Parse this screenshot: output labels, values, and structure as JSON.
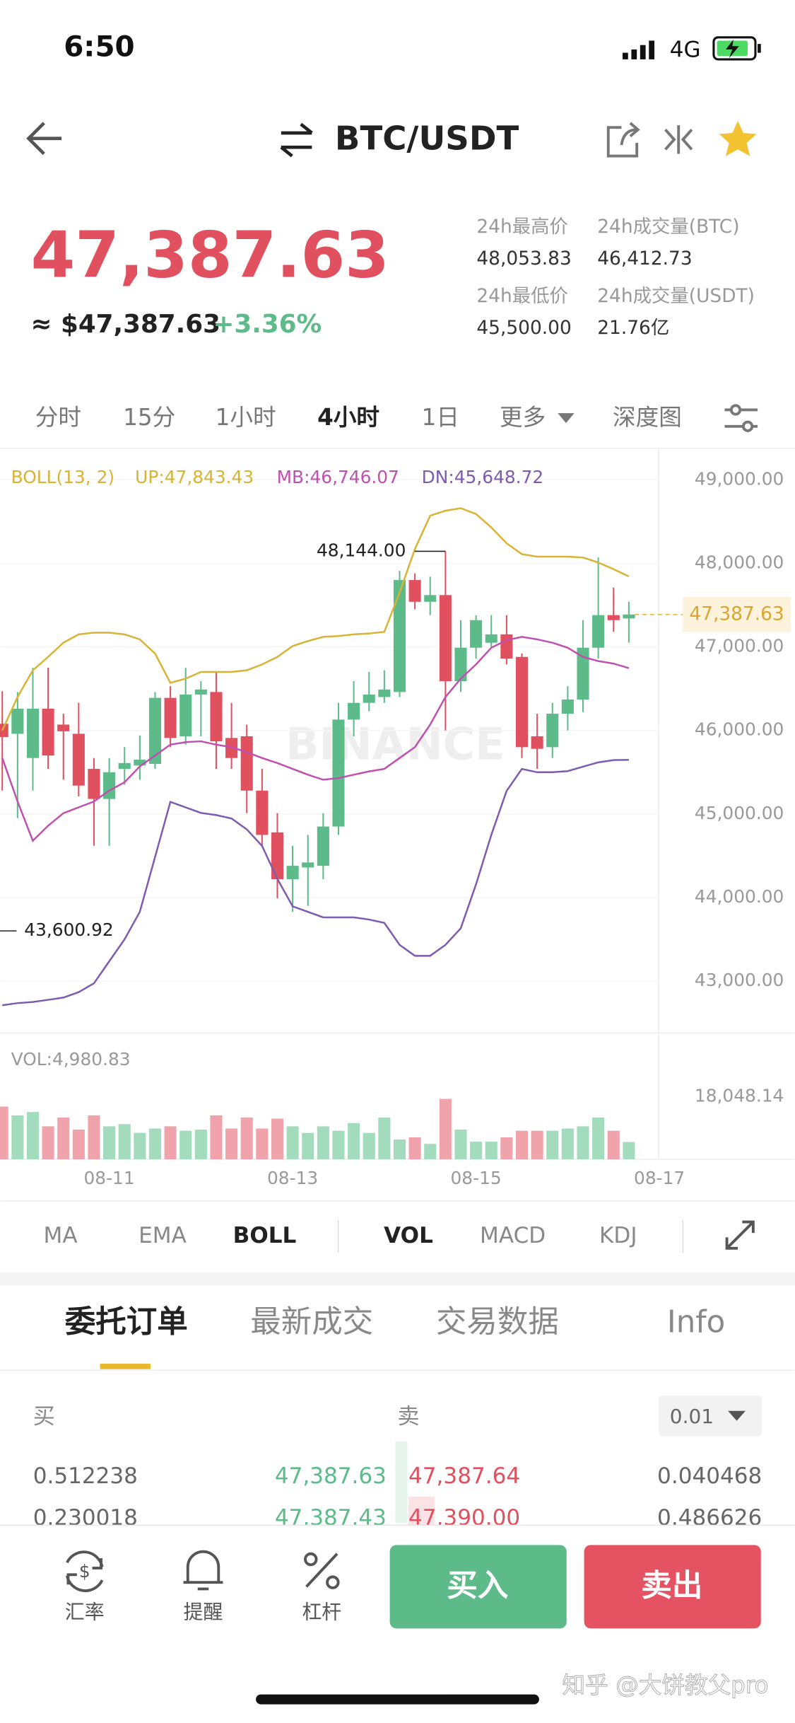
{
  "status_bar": {
    "time": "6:50",
    "network": "4G"
  },
  "header": {
    "title": "BTC/USDT"
  },
  "ticker": {
    "price": "47,387.63",
    "usd": "≈ $47,387.63",
    "change": "+3.36%",
    "stats": [
      {
        "label": "24h最高价",
        "value": "48,053.83"
      },
      {
        "label": "24h成交量(BTC)",
        "value": "46,412.73"
      },
      {
        "label": "24h最低价",
        "value": "45,500.00"
      },
      {
        "label": "24h成交量(USDT)",
        "value": "21.76亿"
      }
    ]
  },
  "intervals": [
    "分时",
    "15分",
    "1小时",
    "4小时",
    "1日",
    "更多",
    "深度图"
  ],
  "chart_watermark": "BINANCE",
  "chart_data": {
    "type": "candlestick",
    "indicator_label": "BOLL(13, 2)",
    "up_color": "#5dbb8a",
    "down_color": "#e0505f",
    "categories": [
      null,
      null,
      null,
      null,
      null,
      null,
      null,
      "08-11",
      null,
      null,
      null,
      null,
      null,
      null,
      null,
      null,
      null,
      null,
      null,
      "08-13",
      null,
      null,
      null,
      null,
      null,
      null,
      null,
      null,
      null,
      null,
      null,
      "08-15",
      null,
      null,
      null,
      null,
      null,
      null,
      null,
      null,
      null,
      null,
      null,
      "08-17"
    ],
    "open": [
      46080,
      45960,
      45670,
      46260,
      46070,
      45960,
      45540,
      45180,
      45540,
      45580,
      45600,
      46390,
      45930,
      46430,
      46460,
      45910,
      45930,
      45280,
      44780,
      44220,
      44360,
      44380,
      44850,
      46130,
      46330,
      46400,
      46460,
      47800,
      47540,
      47620,
      46590,
      46990,
      47050,
      47150,
      46880,
      45930,
      45800,
      46200,
      46370,
      46990,
      47380,
      47340,
      null,
      null
    ],
    "high": [
      46470,
      46460,
      46750,
      46750,
      46200,
      46330,
      45670,
      45670,
      45800,
      45940,
      46460,
      46530,
      46750,
      46590,
      46700,
      46330,
      46070,
      45540,
      45010,
      44620,
      44750,
      45010,
      46330,
      46590,
      46700,
      46720,
      47910,
      47880,
      47840,
      48144,
      47320,
      47380,
      47380,
      47380,
      46920,
      46200,
      46330,
      46530,
      47320,
      48070,
      47710,
      47540,
      null,
      null
    ],
    "low": [
      45280,
      44950,
      45280,
      45540,
      45410,
      45210,
      44620,
      44620,
      45350,
      45410,
      45540,
      45800,
      45830,
      45930,
      45540,
      45540,
      45010,
      44620,
      43990,
      43830,
      43900,
      44220,
      44750,
      45930,
      46230,
      46330,
      46400,
      47450,
      47380,
      46000,
      46460,
      46860,
      46990,
      46790,
      45670,
      45540,
      45670,
      46000,
      46220,
      46860,
      47180,
      47050,
      null,
      null
    ],
    "close": [
      45920,
      46260,
      46260,
      45700,
      45990,
      45340,
      45180,
      45500,
      45610,
      45650,
      46390,
      45910,
      46430,
      46490,
      45870,
      45670,
      45280,
      44750,
      44220,
      44380,
      44420,
      44850,
      46130,
      46330,
      46430,
      46490,
      47800,
      47540,
      47620,
      46590,
      46990,
      47320,
      47150,
      46860,
      45800,
      45780,
      46200,
      46370,
      46990,
      47380,
      47320,
      47387.63,
      null,
      null
    ],
    "bands": [
      {
        "label": "UP:47,843.43",
        "color": "#d8b334",
        "values": [
          46000,
          46400,
          46720,
          46880,
          47050,
          47150,
          47170,
          47170,
          47150,
          47090,
          46920,
          46570,
          46620,
          46700,
          46700,
          46700,
          46720,
          46790,
          46880,
          47010,
          47070,
          47120,
          47130,
          47150,
          47160,
          47180,
          47650,
          48170,
          48570,
          48630,
          48660,
          48590,
          48430,
          48240,
          48110,
          48080,
          48080,
          48080,
          48070,
          48010,
          47930,
          47843.43,
          null,
          null
        ]
      },
      {
        "label": "MB:46,746.07",
        "color": "#c050b0",
        "values": [
          45670,
          45150,
          44680,
          44860,
          45010,
          45080,
          45150,
          45280,
          45380,
          45570,
          45700,
          45830,
          45860,
          45870,
          45830,
          45800,
          45740,
          45670,
          45610,
          45540,
          45470,
          45410,
          45430,
          45470,
          45510,
          45540,
          45670,
          45800,
          46070,
          46400,
          46620,
          46790,
          46990,
          47080,
          47120,
          47090,
          47050,
          46990,
          46880,
          46830,
          46800,
          46746.07,
          null,
          null
        ]
      },
      {
        "label": "DN:45,648.72",
        "color": "#7d5bb0",
        "values": [
          42711,
          42737,
          42750,
          42776,
          42803,
          42868,
          42974,
          43237,
          43500,
          43829,
          44487,
          45145,
          45079,
          45013,
          44987,
          44947,
          44816,
          44618,
          44224,
          43895,
          43829,
          43763,
          43763,
          43763,
          43737,
          43697,
          43434,
          43303,
          43303,
          43434,
          43632,
          44158,
          44750,
          45276,
          45539,
          45500,
          45500,
          45513,
          45566,
          45618,
          45645,
          45648.72,
          null,
          null
        ]
      }
    ],
    "ylim": [
      42380,
      49350
    ],
    "yticks": [
      {
        "value": 49000,
        "label": "49,000.00"
      },
      {
        "value": 48000,
        "label": "48,000.00"
      },
      {
        "value": 47000,
        "label": "47,000.00"
      },
      {
        "value": 46000,
        "label": "46,000.00"
      },
      {
        "value": 45000,
        "label": "45,000.00"
      },
      {
        "value": 44000,
        "label": "44,000.00"
      },
      {
        "value": 43000,
        "label": "43,000.00"
      }
    ],
    "last_price": {
      "value": 47387.63,
      "label": "47,387.63"
    },
    "high_marker": {
      "value": 48144,
      "label": "48,144.00"
    },
    "low_marker": {
      "value": 43600.92,
      "label": "43,600.92"
    },
    "volume": {
      "label": "VOL:4,980.83",
      "up_color": "#a3dbbd",
      "down_color": "#f0a3ab",
      "values": [
        15200,
        12660,
        13610,
        9500,
        12030,
        8550,
        12660,
        9500,
        10130,
        7600,
        8860,
        9500,
        8230,
        8550,
        12660,
        8860,
        12030,
        8860,
        11710,
        9500,
        7600,
        9500,
        8230,
        10450,
        7600,
        12030,
        5700,
        6330,
        4430,
        17410,
        8550,
        5070,
        5070,
        6330,
        8230,
        8230,
        8230,
        8860,
        9500,
        12030,
        8230,
        4980.83,
        null,
        null
      ],
      "ylim": [
        0,
        18048.14
      ],
      "yticks": [
        {
          "value": 18048.14,
          "label": "18,048.14"
        }
      ]
    }
  },
  "indicator_tabs": [
    "MA",
    "EMA",
    "BOLL",
    "VOL",
    "MACD",
    "KDJ"
  ],
  "order_tabs": [
    "委托订单",
    "最新成交",
    "交易数据",
    "Info"
  ],
  "order_book": {
    "buy_label": "买",
    "sell_label": "卖",
    "precision": "0.01",
    "rows": [
      [
        "0.512238",
        "47,387.63",
        "47,387.64",
        "0.040468"
      ],
      [
        "0.230018",
        "47,387.43",
        "47,390.00",
        "0.486626"
      ]
    ]
  },
  "bottom_bar": {
    "items": [
      "汇率",
      "提醒",
      "杠杆"
    ],
    "buy": "买入",
    "sell": "卖出"
  },
  "watermark": "知乎 @大饼教父pro"
}
